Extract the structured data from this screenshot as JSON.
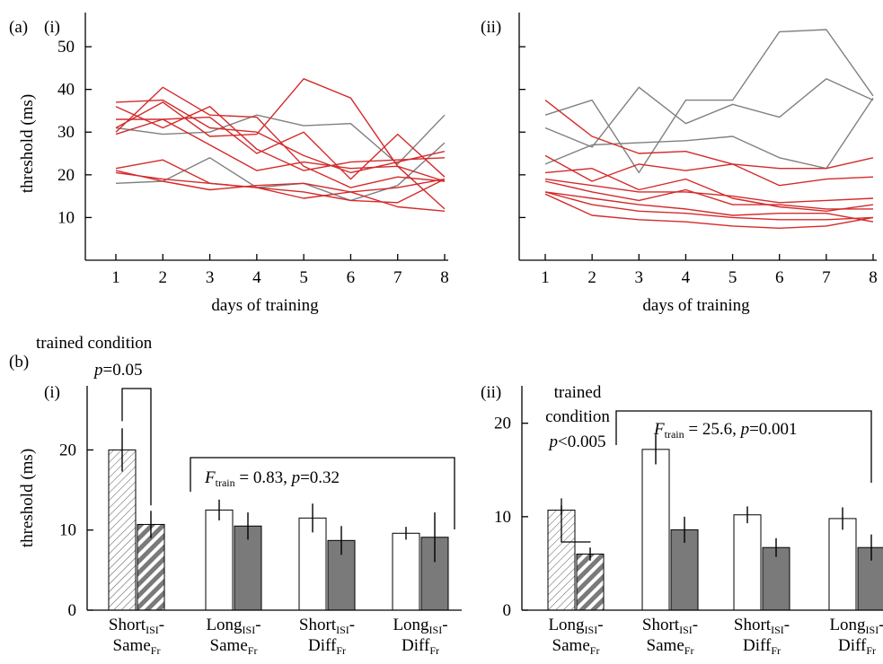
{
  "figure_labels": {
    "panel_a": "(a)",
    "panel_b": "(b)"
  },
  "colors": {
    "trained_line": "#d42a2a",
    "untrained_line": "#808080",
    "post_bar": "#7a7a7a",
    "pre_bar": "#ffffff",
    "axis": "#000000"
  },
  "chart_data": [
    {
      "id": "a-i",
      "type": "line",
      "panel_label": "(i)",
      "xlabel": "days of training",
      "ylabel": "threshold (ms)",
      "x": [
        1,
        2,
        3,
        4,
        5,
        6,
        7,
        8
      ],
      "xlim": [
        0.5,
        8
      ],
      "ylim": [
        0,
        58
      ],
      "yticks": [
        10,
        20,
        30,
        40,
        50
      ],
      "show_ytick_labels": true,
      "grid": false,
      "series": [
        {
          "group": "trained",
          "values": [
            37,
            37.5,
            31,
            30,
            24.5,
            20.5,
            23,
            25.5
          ]
        },
        {
          "group": "trained",
          "values": [
            36,
            31,
            36,
            26,
            21,
            23,
            23.5,
            24
          ]
        },
        {
          "group": "trained",
          "values": [
            30,
            40.5,
            34,
            33.5,
            22,
            17,
            19.5,
            18.5
          ]
        },
        {
          "group": "trained",
          "values": [
            31,
            37,
            29,
            29.5,
            42.5,
            38,
            22,
            12
          ]
        },
        {
          "group": "trained",
          "values": [
            33,
            33,
            33.5,
            25,
            30,
            19,
            29.5,
            19.5
          ]
        },
        {
          "group": "trained",
          "values": [
            29.5,
            33,
            27,
            21,
            23,
            21.5,
            22,
            18.5
          ]
        },
        {
          "group": "trained",
          "values": [
            21.5,
            23.5,
            18,
            17,
            14.5,
            16,
            17,
            19
          ]
        },
        {
          "group": "trained",
          "values": [
            21,
            18.5,
            16.5,
            17.5,
            18,
            16,
            12.5,
            11.5
          ]
        },
        {
          "group": "trained",
          "values": [
            20.5,
            19,
            18,
            17,
            16,
            14,
            13.5,
            19
          ]
        },
        {
          "group": "untrained",
          "values": [
            31,
            29.5,
            30,
            34,
            31.5,
            32,
            22.5,
            34
          ]
        },
        {
          "group": "untrained",
          "values": [
            18,
            18.5,
            24,
            17,
            18,
            14,
            17.5,
            27.5
          ]
        }
      ]
    },
    {
      "id": "a-ii",
      "type": "line",
      "panel_label": "(ii)",
      "xlabel": "days of training",
      "ylabel": "",
      "x": [
        1,
        2,
        3,
        4,
        5,
        6,
        7,
        8
      ],
      "xlim": [
        0.5,
        8
      ],
      "ylim": [
        0,
        58
      ],
      "yticks": [
        10,
        20,
        30,
        40,
        50
      ],
      "show_ytick_labels": false,
      "grid": false,
      "series": [
        {
          "group": "trained",
          "values": [
            37.5,
            29,
            25,
            25.5,
            22.5,
            17.5,
            19,
            19.5
          ]
        },
        {
          "group": "trained",
          "values": [
            24.5,
            18.5,
            22.5,
            21,
            22.5,
            21.5,
            21.5,
            24
          ]
        },
        {
          "group": "trained",
          "values": [
            20.5,
            21.5,
            16.5,
            19,
            14.5,
            12.5,
            11.5,
            13
          ]
        },
        {
          "group": "trained",
          "values": [
            19,
            17.5,
            16,
            16,
            15,
            13.5,
            14,
            14.5
          ]
        },
        {
          "group": "trained",
          "values": [
            18.5,
            16,
            14,
            16.5,
            13,
            13,
            12,
            12
          ]
        },
        {
          "group": "trained",
          "values": [
            16,
            14.5,
            13,
            12,
            10.5,
            11,
            11,
            9
          ]
        },
        {
          "group": "trained",
          "values": [
            16,
            13,
            11.5,
            11,
            10,
            9.5,
            9.5,
            10
          ]
        },
        {
          "group": "trained",
          "values": [
            15.5,
            10.5,
            9.5,
            9,
            8,
            7.5,
            8,
            10
          ]
        },
        {
          "group": "untrained",
          "values": [
            34,
            37.5,
            20.5,
            37.5,
            37.5,
            53.5,
            54,
            38.5
          ]
        },
        {
          "group": "untrained",
          "values": [
            31,
            26.5,
            40.5,
            32,
            36.5,
            33.5,
            42.5,
            37.5
          ]
        },
        {
          "group": "untrained",
          "values": [
            22.5,
            27,
            27.5,
            28,
            29,
            24,
            21.5,
            38
          ]
        }
      ]
    },
    {
      "id": "b-i",
      "type": "bar",
      "panel_label": "(i)",
      "ylabel": "threshold (ms)",
      "ylim": [
        0,
        28
      ],
      "yticks": [
        0,
        10,
        20
      ],
      "grid": false,
      "groups": [
        {
          "base": "Short",
          "sub1": "ISI",
          "base2": "Same",
          "sub2": "Fr",
          "trained": true,
          "pre": 20,
          "pre_err": 2.7,
          "post": 10.7,
          "post_err": 1.7
        },
        {
          "base": "Long",
          "sub1": "ISI",
          "base2": "Same",
          "sub2": "Fr",
          "trained": false,
          "pre": 12.5,
          "pre_err": 1.3,
          "post": 10.5,
          "post_err": 1.7
        },
        {
          "base": "Short",
          "sub1": "ISI",
          "base2": "Diff",
          "sub2": "Fr",
          "trained": false,
          "pre": 11.5,
          "pre_err": 1.8,
          "post": 8.7,
          "post_err": 1.8
        },
        {
          "base": "Long",
          "sub1": "ISI",
          "base2": "Diff",
          "sub2": "Fr",
          "trained": false,
          "pre": 9.6,
          "pre_err": 0.8,
          "post": 9.1,
          "post_err": 3.1
        }
      ],
      "trained_annotation": {
        "title": "trained condition",
        "p": "p=0.05"
      },
      "stat_annotation": {
        "F_base": "F",
        "F_sub": "train",
        "text": " = 0.83, ",
        "p": "p=0.32"
      }
    },
    {
      "id": "b-ii",
      "type": "bar",
      "panel_label": "(ii)",
      "ylabel": "",
      "ylim": [
        0,
        24
      ],
      "yticks": [
        0,
        10,
        20
      ],
      "grid": false,
      "groups": [
        {
          "base": "Long",
          "sub1": "ISI",
          "base2": "Same",
          "sub2": "Fr",
          "trained": true,
          "pre": 10.7,
          "pre_err": 0.5,
          "post": 6.0,
          "post_err": 0.7
        },
        {
          "base": "Short",
          "sub1": "ISI",
          "base2": "Same",
          "sub2": "Fr",
          "trained": false,
          "pre": 17.2,
          "pre_err": 1.6,
          "post": 8.6,
          "post_err": 1.4
        },
        {
          "base": "Short",
          "sub1": "ISI",
          "base2": "Diff",
          "sub2": "Fr",
          "trained": false,
          "pre": 10.2,
          "pre_err": 0.9,
          "post": 6.7,
          "post_err": 1.0
        },
        {
          "base": "Long",
          "sub1": "ISI",
          "base2": "Diff",
          "sub2": "Fr",
          "trained": false,
          "pre": 9.8,
          "pre_err": 1.2,
          "post": 6.7,
          "post_err": 1.4
        }
      ],
      "trained_annotation": {
        "title1": "trained",
        "title2": "condition",
        "p": "p<0.005"
      },
      "stat_annotation": {
        "F_base": "F",
        "F_sub": "train",
        "text": " = 25.6, ",
        "p": "p=0.001"
      }
    }
  ]
}
